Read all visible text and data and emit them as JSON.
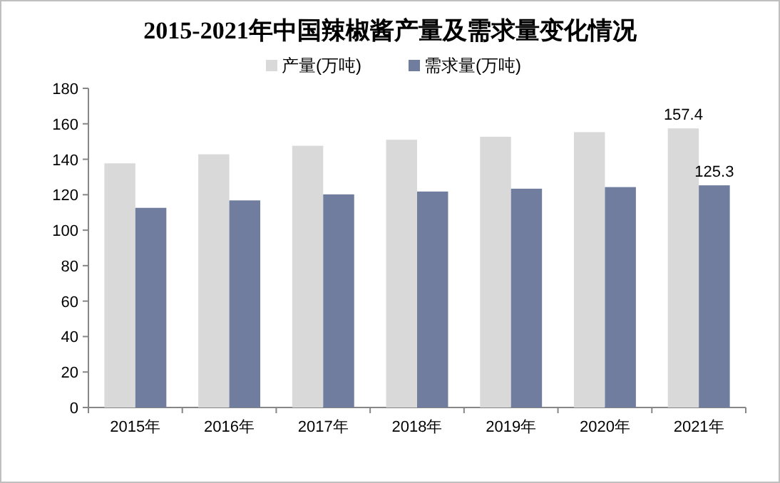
{
  "chart_data": {
    "type": "bar",
    "title": "2015-2021年中国辣椒酱产量及需求量变化情况",
    "categories": [
      "2015年",
      "2016年",
      "2017年",
      "2018年",
      "2019年",
      "2020年",
      "2021年"
    ],
    "series": [
      {
        "name": "产量(万吨)",
        "color": "#d9d9d9",
        "values": [
          137.7,
          142.8,
          147.6,
          151.0,
          152.7,
          155.3,
          157.4
        ],
        "value_labels": [
          null,
          null,
          null,
          null,
          null,
          null,
          "157.4"
        ]
      },
      {
        "name": "需求量(万吨)",
        "color": "#717d9f",
        "values": [
          112.6,
          116.8,
          120.2,
          121.8,
          123.4,
          124.3,
          125.3
        ],
        "value_labels": [
          null,
          null,
          null,
          null,
          null,
          null,
          "125.3"
        ]
      }
    ],
    "ylim": [
      0,
      180
    ],
    "yticks": [
      0,
      20,
      40,
      60,
      80,
      100,
      120,
      140,
      160,
      180
    ],
    "grid": false,
    "legend": "top"
  }
}
